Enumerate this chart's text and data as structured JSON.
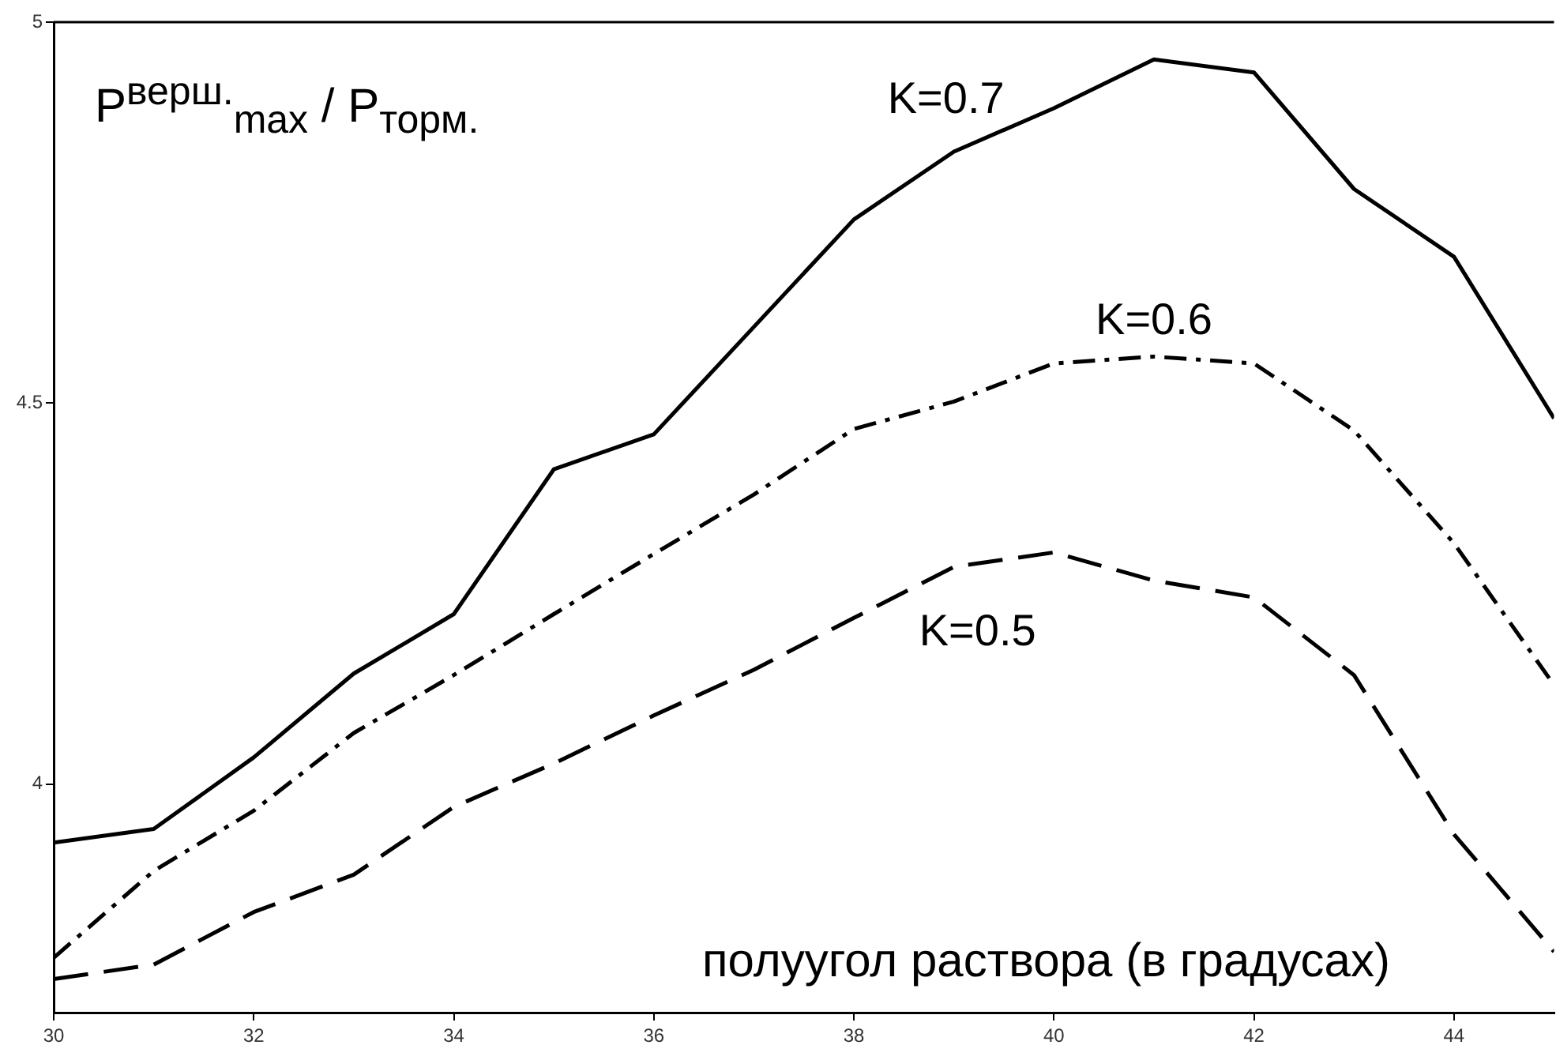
{
  "chart_data": {
    "type": "line",
    "xlabel": "полуугол раствора (в градусах)",
    "ylabel": "P$^{верш.}$$_{max}$ / P$_{торм.}$",
    "x": [
      30,
      31,
      32,
      33,
      34,
      35,
      36,
      37,
      38,
      39,
      40,
      41,
      42,
      43,
      44,
      45
    ],
    "series": [
      {
        "name": "K=0.7",
        "color": "#000000",
        "line_style": "solid",
        "values": [
          3.923,
          3.941,
          4.035,
          4.145,
          4.223,
          4.413,
          4.459,
          4.6,
          4.741,
          4.83,
          4.887,
          4.951,
          4.934,
          4.781,
          4.692,
          4.48
        ]
      },
      {
        "name": "K=0.6",
        "color": "#000000",
        "line_style": "dashdot",
        "values": [
          3.772,
          3.886,
          3.965,
          4.067,
          4.143,
          4.223,
          4.302,
          4.38,
          4.466,
          4.502,
          4.552,
          4.561,
          4.552,
          4.464,
          4.316,
          4.13
        ]
      },
      {
        "name": "K=0.5",
        "color": "#000000",
        "line_style": "dashed",
        "values": [
          3.744,
          3.763,
          3.832,
          3.881,
          3.97,
          4.027,
          4.09,
          4.15,
          4.218,
          4.285,
          4.304,
          4.267,
          4.245,
          4.143,
          3.934,
          3.78
        ]
      }
    ],
    "xlim": [
      30,
      45
    ],
    "ylim": [
      3.7,
      5
    ],
    "xticks": [
      30,
      32,
      34,
      36,
      38,
      40,
      42,
      44
    ],
    "yticks": [
      4,
      4.5,
      5
    ],
    "grid": false,
    "legend": false,
    "marker": "none"
  }
}
